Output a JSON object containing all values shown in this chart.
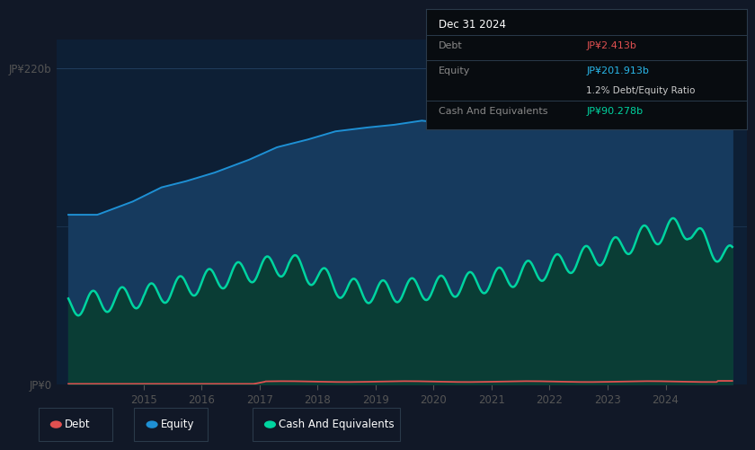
{
  "background_color": "#111827",
  "plot_bg_color": "#0d1f35",
  "tooltip": {
    "title": "Dec 31 2024",
    "debt_label": "Debt",
    "debt_value": "JP¥2.413b",
    "equity_label": "Equity",
    "equity_value": "JP¥201.913b",
    "ratio_text": "1.2% Debt/Equity Ratio",
    "cash_label": "Cash And Equivalents",
    "cash_value": "JP¥90.278b"
  },
  "ylabel_top": "JP¥220b",
  "ylabel_bottom": "JP¥0",
  "x_tick_years": [
    2015,
    2016,
    2017,
    2018,
    2019,
    2020,
    2021,
    2022,
    2023,
    2024
  ],
  "equity_color": "#1e90d4",
  "equity_fill": "#163a5e",
  "cash_color": "#00d4a0",
  "cash_fill": "#0a3d35",
  "debt_color": "#e05050",
  "legend_items": [
    {
      "label": "Debt",
      "color": "#e05050"
    },
    {
      "label": "Equity",
      "color": "#1e90d4"
    },
    {
      "label": "Cash And Equivalents",
      "color": "#00d4a0"
    }
  ],
  "ylim": [
    0,
    240
  ],
  "xlim_start": 2013.5,
  "xlim_end": 2025.4
}
